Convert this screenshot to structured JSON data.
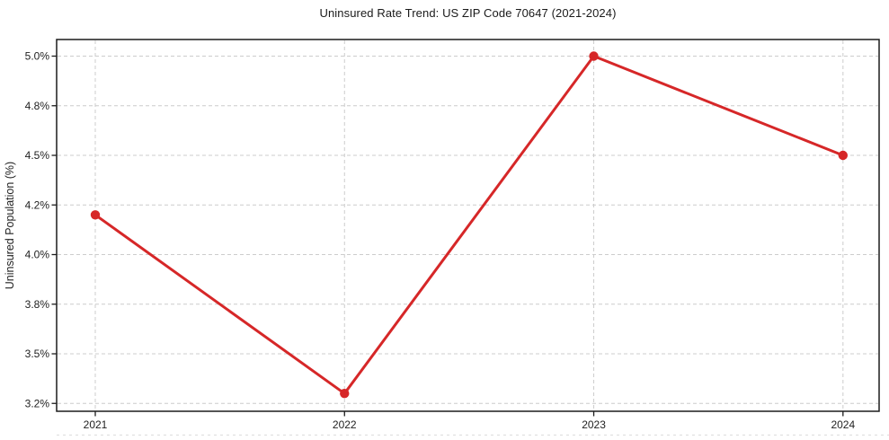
{
  "chart_data": {
    "type": "line",
    "title": "Uninsured Rate Trend: US ZIP Code 70647 (2021-2024)",
    "xlabel": "",
    "ylabel": "Uninsured Population (%)",
    "categories": [
      "2021",
      "2022",
      "2023",
      "2024"
    ],
    "values": [
      4.16,
      3.26,
      5.0,
      4.5
    ],
    "ytick_values": [
      3.2,
      3.5,
      3.8,
      4.0,
      4.2,
      4.5,
      4.8,
      5.0
    ],
    "ytick_labels": [
      "3.2%",
      "3.5%",
      "3.8%",
      "4.0%",
      "4.2%",
      "4.5%",
      "4.8%",
      "5.0%"
    ],
    "line_color": "#d62728",
    "marker": "circle",
    "grid": true,
    "grid_style": "dashed",
    "legend_position": "none",
    "axis_box": true,
    "ytick_spacing": "even-pixel (non-linear values)"
  },
  "colors": {
    "line": "#d62728",
    "grid": "#cccccc",
    "axis": "#1c1c1c",
    "text": "#222222",
    "background": "#ffffff",
    "bottom_edge_line": "#dcdcdc"
  }
}
